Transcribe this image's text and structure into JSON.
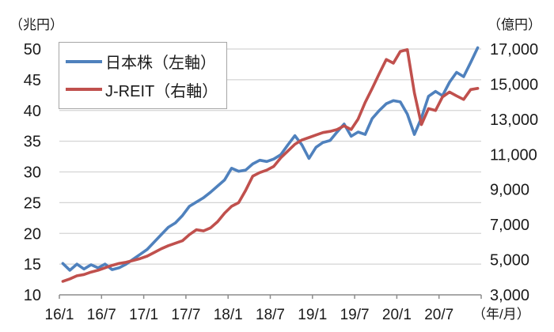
{
  "chart": {
    "left_axis_unit": "（兆円）",
    "right_axis_unit": "（億円）",
    "x_axis_unit": "（年/月）",
    "colors": {
      "nihon_kabu_line": "#4F81BD",
      "jreit_line": "#C0504D",
      "gridline": "#d4d4d4",
      "axis_line": "#8c8c8c",
      "text": "#1a1a1a",
      "legend_border": "#a6a6a6",
      "background": "#ffffff"
    },
    "legend": {
      "items": [
        {
          "label": "日本株（左軸）",
          "color": "#4F81BD"
        },
        {
          "label": "J-REIT（右軸）",
          "color": "#C0504D"
        }
      ]
    }
  },
  "chart_data": {
    "type": "line",
    "title": "",
    "x": [
      "16/1",
      "16/2",
      "16/3",
      "16/4",
      "16/5",
      "16/6",
      "16/7",
      "16/8",
      "16/9",
      "16/10",
      "16/11",
      "16/12",
      "17/1",
      "17/2",
      "17/3",
      "17/4",
      "17/5",
      "17/6",
      "17/7",
      "17/8",
      "17/9",
      "17/10",
      "17/11",
      "17/12",
      "18/1",
      "18/2",
      "18/3",
      "18/4",
      "18/5",
      "18/6",
      "18/7",
      "18/8",
      "18/9",
      "18/10",
      "18/11",
      "18/12",
      "19/1",
      "19/2",
      "19/3",
      "19/4",
      "19/5",
      "19/6",
      "19/7",
      "19/8",
      "19/9",
      "19/10",
      "19/11",
      "19/12",
      "20/1",
      "20/2",
      "20/3",
      "20/4",
      "20/5",
      "20/6",
      "20/7",
      "20/8",
      "20/9",
      "20/10",
      "20/11",
      "20/12"
    ],
    "x_tick_labels": [
      "16/1",
      "16/7",
      "17/1",
      "17/7",
      "18/1",
      "18/7",
      "19/1",
      "19/7",
      "20/1",
      "20/7"
    ],
    "x_axis_label": "（年/月）",
    "series": [
      {
        "name": "日本株（左軸）",
        "axis": "left",
        "color": "#4F81BD",
        "unit": "兆円",
        "values": [
          15.1,
          14.0,
          15.0,
          14.2,
          14.9,
          14.4,
          15.0,
          14.1,
          14.4,
          15.0,
          15.8,
          16.6,
          17.4,
          18.6,
          19.8,
          21.0,
          21.7,
          22.9,
          24.4,
          25.1,
          25.8,
          26.7,
          27.7,
          28.7,
          30.6,
          30.1,
          30.3,
          31.3,
          31.9,
          31.7,
          32.1,
          32.8,
          34.4,
          35.9,
          34.4,
          32.2,
          34.0,
          34.8,
          35.1,
          36.5,
          37.8,
          35.8,
          36.5,
          36.1,
          38.7,
          40.0,
          41.1,
          41.6,
          41.4,
          39.4,
          36.1,
          38.8,
          42.3,
          43.1,
          42.4,
          44.6,
          46.2,
          45.5,
          47.8,
          50.2
        ]
      },
      {
        "name": "J-REIT（右軸）",
        "axis": "right",
        "color": "#C0504D",
        "unit": "億円",
        "values": [
          3770,
          3910,
          4085,
          4155,
          4295,
          4400,
          4540,
          4680,
          4785,
          4855,
          4960,
          5065,
          5205,
          5415,
          5625,
          5800,
          5940,
          6080,
          6430,
          6710,
          6640,
          6815,
          7165,
          7655,
          8040,
          8250,
          8950,
          9755,
          9965,
          10105,
          10315,
          10805,
          11190,
          11575,
          11820,
          11960,
          12100,
          12240,
          12310,
          12415,
          12625,
          12415,
          13010,
          13955,
          14760,
          15600,
          16405,
          16195,
          16860,
          16965,
          14500,
          12695,
          13605,
          13500,
          14270,
          14550,
          14330,
          14130,
          14690,
          14760
        ]
      }
    ],
    "left_axis": {
      "label": "（兆円）",
      "min": 10,
      "max": 50,
      "tick_step": 5,
      "ticks": [
        "50",
        "45",
        "40",
        "35",
        "30",
        "25",
        "20",
        "15",
        "10"
      ]
    },
    "right_axis": {
      "label": "（億円）",
      "min": 3000,
      "max": 17000,
      "tick_step": 2000,
      "ticks": [
        "17,000",
        "15,000",
        "13,000",
        "11,000",
        "9,000",
        "7,000",
        "5,000",
        "3,000"
      ]
    },
    "grid": "horizontal",
    "legend_position": "top-left-inside"
  }
}
